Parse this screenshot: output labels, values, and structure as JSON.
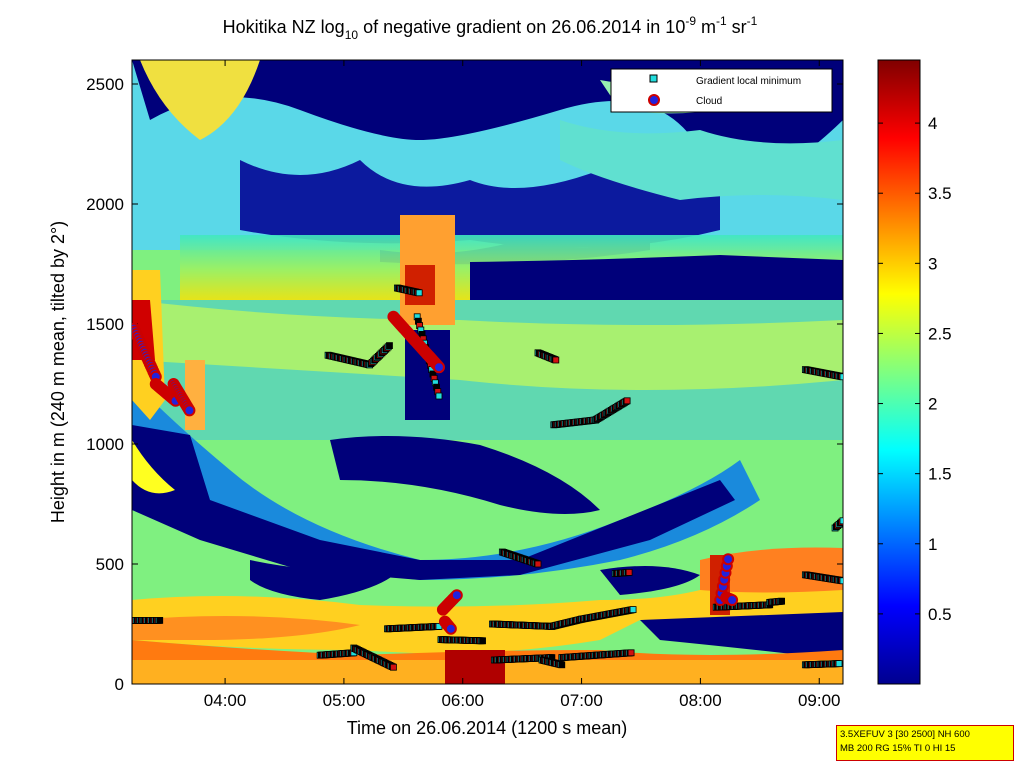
{
  "chart_data": {
    "type": "heatmap",
    "title": {
      "prefix": "Hokitika NZ log",
      "log_base": "10",
      "middle": " of negative gradient on 26.06.2014 in 10",
      "exp1": "-9",
      "unit1": " m",
      "exp2": "-1",
      "unit2": " sr",
      "exp3": "-1"
    },
    "xlabel": "Time on 26.06.2014 (1200 s mean)",
    "ylabel": "Height in m (240 m mean, tilted by 2°)",
    "xlim": [
      "03:13",
      "09:12"
    ],
    "ylim": [
      0,
      2600
    ],
    "x_ticks": [
      "04:00",
      "05:00",
      "06:00",
      "07:00",
      "08:00",
      "09:00"
    ],
    "y_ticks": [
      0,
      500,
      1000,
      1500,
      2000,
      2500
    ],
    "colorbar": {
      "colormap": "jet",
      "range": [
        0.0,
        4.45
      ],
      "ticks": [
        "0.5",
        "1",
        "1.5",
        "2",
        "2.5",
        "3",
        "3.5",
        "4"
      ]
    },
    "legend": {
      "placement": "top-right",
      "entries": [
        {
          "label": "Gradient local minimum",
          "marker": "square",
          "color": "#22dddd"
        },
        {
          "label": "Cloud",
          "marker": "circle",
          "color": "#2222dd",
          "edge": "#cc0000"
        }
      ]
    },
    "series": [
      {
        "name": "Gradient local minimum",
        "segments": [
          {
            "start": "03:13",
            "end": "03:27",
            "height_start": 265,
            "height_end": 265
          },
          {
            "start": "04:52",
            "end": "05:13",
            "height_start": 1370,
            "height_end": 1330
          },
          {
            "start": "05:13",
            "end": "05:23",
            "height_start": 1330,
            "height_end": 1410
          },
          {
            "start": "05:27",
            "end": "05:38",
            "height_start": 1650,
            "height_end": 1630
          },
          {
            "start": "05:37",
            "end": "05:48",
            "height_start": 1530,
            "height_end": 1200
          },
          {
            "start": "06:38",
            "end": "06:47",
            "height_start": 1380,
            "height_end": 1350
          },
          {
            "start": "06:46",
            "end": "07:07",
            "height_start": 1080,
            "height_end": 1100
          },
          {
            "start": "07:07",
            "end": "07:23",
            "height_start": 1100,
            "height_end": 1180
          },
          {
            "start": "08:53",
            "end": "09:12",
            "height_start": 1310,
            "height_end": 1280
          },
          {
            "start": "09:08",
            "end": "09:12",
            "height_start": 650,
            "height_end": 680
          },
          {
            "start": "06:20",
            "end": "06:38",
            "height_start": 550,
            "height_end": 500
          },
          {
            "start": "07:17",
            "end": "07:24",
            "height_start": 460,
            "height_end": 465
          },
          {
            "start": "08:53",
            "end": "09:12",
            "height_start": 455,
            "height_end": 430
          },
          {
            "start": "05:22",
            "end": "05:48",
            "height_start": 230,
            "height_end": 240
          },
          {
            "start": "05:49",
            "end": "06:10",
            "height_start": 185,
            "height_end": 180
          },
          {
            "start": "06:15",
            "end": "06:45",
            "height_start": 250,
            "height_end": 240
          },
          {
            "start": "06:45",
            "end": "07:00",
            "height_start": 240,
            "height_end": 270
          },
          {
            "start": "07:00",
            "end": "07:26",
            "height_start": 270,
            "height_end": 310
          },
          {
            "start": "08:08",
            "end": "08:35",
            "height_start": 320,
            "height_end": 330
          },
          {
            "start": "08:35",
            "end": "08:41",
            "height_start": 340,
            "height_end": 345
          },
          {
            "start": "04:48",
            "end": "05:05",
            "height_start": 120,
            "height_end": 130
          },
          {
            "start": "05:05",
            "end": "05:25",
            "height_start": 150,
            "height_end": 70
          },
          {
            "start": "06:16",
            "end": "06:45",
            "height_start": 100,
            "height_end": 110
          },
          {
            "start": "06:40",
            "end": "06:50",
            "height_start": 100,
            "height_end": 80
          },
          {
            "start": "06:50",
            "end": "07:25",
            "height_start": 110,
            "height_end": 130
          },
          {
            "start": "08:53",
            "end": "09:10",
            "height_start": 80,
            "height_end": 85
          }
        ]
      },
      {
        "name": "Cloud",
        "segments": [
          {
            "start": "03:14",
            "end": "03:25",
            "height_start": 1480,
            "height_end": 1280
          },
          {
            "start": "03:25",
            "end": "03:35",
            "height_start": 1250,
            "height_end": 1180
          },
          {
            "start": "03:34",
            "end": "03:42",
            "height_start": 1250,
            "height_end": 1140
          },
          {
            "start": "05:25",
            "end": "05:48",
            "height_start": 1530,
            "height_end": 1320
          },
          {
            "start": "05:50",
            "end": "05:57",
            "height_start": 310,
            "height_end": 370
          },
          {
            "start": "05:51",
            "end": "05:54",
            "height_start": 260,
            "height_end": 230
          },
          {
            "start": "08:10",
            "end": "08:14",
            "height_start": 350,
            "height_end": 520
          },
          {
            "start": "08:13",
            "end": "08:16",
            "height_start": 360,
            "height_end": 350
          }
        ]
      }
    ]
  },
  "info_box": {
    "line1": "3.5XEFUV 3 [30 2500] NH 600",
    "line2": "MB 200 RG 15% TI 0 HI 15"
  }
}
